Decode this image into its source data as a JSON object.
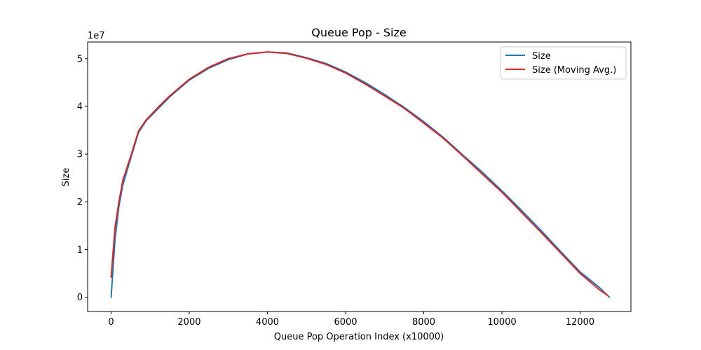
{
  "chart_data": {
    "type": "line",
    "title": "Queue Pop - Size",
    "xlabel": "Queue Pop Operation Index (x10000)",
    "ylabel": "Size",
    "y_offset_label": "1e7",
    "xlim": [
      -600,
      13300
    ],
    "ylim": [
      -0.3,
      5.35
    ],
    "y_scale_note": "values in units of 1e7",
    "x_ticks": [
      0,
      2000,
      4000,
      6000,
      8000,
      10000,
      12000
    ],
    "x_tick_labels": [
      "0",
      "2000",
      "4000",
      "6000",
      "8000",
      "10000",
      "12000"
    ],
    "y_ticks": [
      0,
      1,
      2,
      3,
      4,
      5
    ],
    "y_tick_labels": [
      "0",
      "1",
      "2",
      "3",
      "4",
      "5"
    ],
    "grid": false,
    "legend_position": "top-right",
    "series": [
      {
        "name": "Size",
        "color": "#1f77b4",
        "x": [
          0,
          100,
          200,
          300,
          500,
          700,
          900,
          1200,
          1500,
          2000,
          2500,
          3000,
          3500,
          4000,
          4500,
          5000,
          5500,
          6000,
          6500,
          7000,
          7500,
          8000,
          8500,
          9000,
          9500,
          10000,
          10500,
          11000,
          11500,
          12000,
          12500,
          12750
        ],
        "y": [
          0.0,
          1.2,
          1.9,
          2.35,
          2.9,
          3.45,
          3.7,
          3.95,
          4.2,
          4.55,
          4.8,
          4.98,
          5.1,
          5.14,
          5.12,
          5.02,
          4.9,
          4.72,
          4.5,
          4.25,
          3.98,
          3.68,
          3.35,
          2.98,
          2.62,
          2.23,
          1.82,
          1.4,
          0.96,
          0.53,
          0.2,
          0.0
        ]
      },
      {
        "name": "Size (Moving Avg.)",
        "color": "#d62728",
        "x": [
          0,
          100,
          200,
          300,
          500,
          700,
          900,
          1200,
          1500,
          2000,
          2500,
          3000,
          3500,
          4000,
          4500,
          5000,
          5500,
          6000,
          6500,
          7000,
          7500,
          8000,
          8500,
          9000,
          9500,
          10000,
          10500,
          11000,
          11500,
          12000,
          12500,
          12700
        ],
        "y": [
          0.42,
          1.45,
          2.0,
          2.45,
          2.95,
          3.48,
          3.72,
          3.98,
          4.22,
          4.57,
          4.82,
          5.0,
          5.1,
          5.14,
          5.11,
          5.01,
          4.88,
          4.7,
          4.47,
          4.22,
          3.96,
          3.65,
          3.33,
          2.96,
          2.58,
          2.2,
          1.78,
          1.36,
          0.93,
          0.5,
          0.15,
          0.04
        ]
      }
    ]
  }
}
